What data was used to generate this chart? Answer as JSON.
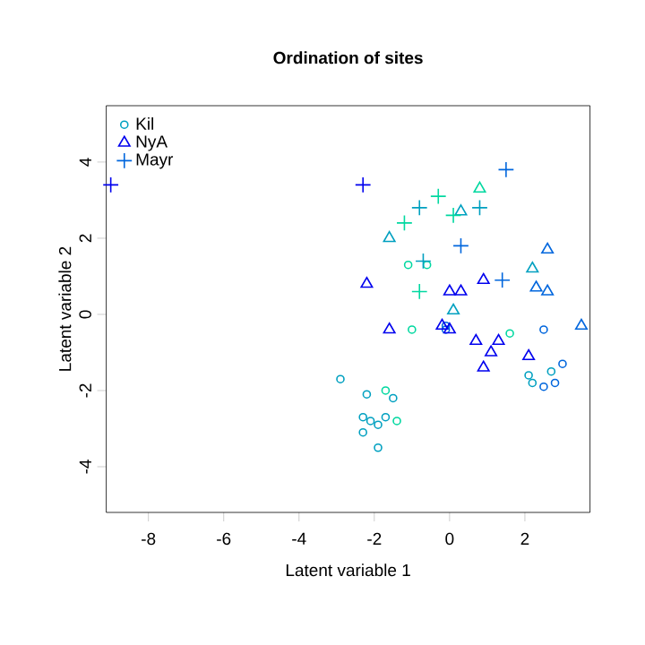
{
  "chart_data": {
    "type": "scatter",
    "title": "Ordination of sites",
    "xlabel": "Latent variable 1",
    "ylabel": "Latent variable 2",
    "xlim": [
      -9.12,
      3.73
    ],
    "ylim": [
      -5.2,
      5.48
    ],
    "xticks": [
      -8,
      -6,
      -4,
      -2,
      0,
      2
    ],
    "yticks": [
      -4,
      -2,
      0,
      2,
      4
    ],
    "grid": false,
    "legend": "top left",
    "series": [
      {
        "name": "Kil",
        "marker": "circle",
        "color": "#00a0c0",
        "x": [
          -1.1,
          -0.6,
          -1.0,
          1.6,
          2.5,
          2.7,
          3.0,
          2.1,
          2.2,
          2.5,
          2.8,
          -2.9,
          -2.2,
          -1.7,
          -1.5,
          -2.3,
          -2.1,
          -1.9,
          -1.7,
          -1.4,
          -2.3,
          -1.9,
          -0.1,
          -0.1
        ],
        "values": [
          1.3,
          1.3,
          -0.4,
          -0.5,
          -0.4,
          -1.5,
          -1.3,
          -1.6,
          -1.8,
          -1.9,
          -1.8,
          -1.7,
          -2.1,
          -2.0,
          -2.2,
          -2.7,
          -2.8,
          -2.9,
          -2.7,
          -2.8,
          -3.1,
          -3.5,
          -0.3,
          -0.4
        ],
        "colors": [
          "#00d8a0",
          "#00d8a0",
          "#00d8a0",
          "#00d8a0",
          "#0066dd",
          "#00a0c0",
          "#0066dd",
          "#00a0c0",
          "#00a0c0",
          "#0066dd",
          "#0066dd",
          "#00a0c0",
          "#00a0c0",
          "#00d8a0",
          "#00a0c0",
          "#00a0c0",
          "#00a0c0",
          "#00a0c0",
          "#00a0c0",
          "#00d8a0",
          "#00a0c0",
          "#00a0c0",
          "#0066dd",
          "#0066dd"
        ]
      },
      {
        "name": "NyA",
        "marker": "triangle",
        "color": "#0000ee",
        "x": [
          0.8,
          0.3,
          -1.6,
          2.6,
          2.2,
          -2.2,
          0.0,
          0.3,
          0.9,
          2.3,
          2.6,
          0.1,
          -1.6,
          -0.2,
          0.0,
          3.5,
          0.7,
          1.3,
          1.1,
          0.9,
          2.1
        ],
        "values": [
          3.3,
          2.7,
          2.0,
          1.7,
          1.2,
          0.8,
          0.6,
          0.6,
          0.9,
          0.7,
          0.6,
          0.1,
          -0.4,
          -0.3,
          -0.4,
          -0.3,
          -0.7,
          -0.7,
          -1.0,
          -1.4,
          -1.1
        ],
        "colors": [
          "#00d8a0",
          "#00a0c0",
          "#00a0c0",
          "#0066dd",
          "#00a0c0",
          "#0000ee",
          "#0000ee",
          "#0000ee",
          "#0000ee",
          "#0066dd",
          "#0066dd",
          "#00a0c0",
          "#0000ee",
          "#0000ee",
          "#0000ee",
          "#0066dd",
          "#0000ee",
          "#0000ee",
          "#0000ee",
          "#0000ee",
          "#0000ee"
        ]
      },
      {
        "name": "Mayr",
        "marker": "cross",
        "color": "#0066dd",
        "x": [
          -9.0,
          -2.3,
          1.5,
          -0.3,
          -0.8,
          0.8,
          0.1,
          -1.2,
          0.3,
          -0.7,
          1.4,
          -0.8
        ],
        "values": [
          3.4,
          3.4,
          3.8,
          3.1,
          2.8,
          2.8,
          2.6,
          2.4,
          1.8,
          1.4,
          0.9,
          0.6
        ],
        "colors": [
          "#0000ee",
          "#0000ee",
          "#0066dd",
          "#00d8a0",
          "#00a0c0",
          "#00a0c0",
          "#00d8a0",
          "#00d8a0",
          "#0066dd",
          "#00a0c0",
          "#0066dd",
          "#00d8a0"
        ]
      }
    ]
  }
}
